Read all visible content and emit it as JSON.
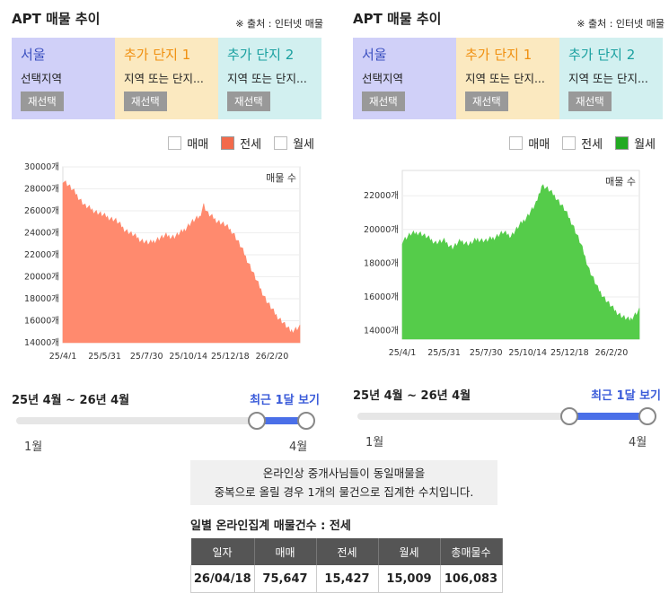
{
  "panels": [
    {
      "title": "APT 매물 추이",
      "source": "※ 출처 : 인터넷 매물",
      "regions": [
        {
          "name": "서울",
          "sub": "선택지역",
          "button": "재선택",
          "bg": "#d0d0f8",
          "color": "#3a4fc0"
        },
        {
          "name": "추가 단지 1",
          "sub": "지역 또는 단지...",
          "button": "재선택",
          "bg": "#fbe9c0",
          "color": "#f09010"
        },
        {
          "name": "추가 단지 2",
          "sub": "지역 또는 단지...",
          "button": "재선택",
          "bg": "#d2f0f0",
          "color": "#1aa0a0"
        }
      ],
      "legend": [
        {
          "label": "매매",
          "checked": false,
          "color": "#ffffff"
        },
        {
          "label": "전세",
          "checked": true,
          "color": "#f26a4b"
        },
        {
          "label": "월세",
          "checked": false,
          "color": "#ffffff"
        }
      ],
      "period": "25년 4월 ~ 26년 4월",
      "recent": "최근 1달 보기",
      "slider": {
        "min_label": "1월",
        "max_label": "4월",
        "low": 0.83,
        "high": 1.0
      }
    },
    {
      "title": "APT 매물 추이",
      "source": "※ 출처 : 인터넷 매물",
      "regions": [
        {
          "name": "서울",
          "sub": "선택지역",
          "button": "재선택",
          "bg": "#d0d0f8",
          "color": "#3a4fc0"
        },
        {
          "name": "추가 단지 1",
          "sub": "지역 또는 단지...",
          "button": "재선택",
          "bg": "#fbe9c0",
          "color": "#f09010"
        },
        {
          "name": "추가 단지 2",
          "sub": "지역 또는 단지...",
          "button": "재선택",
          "bg": "#d2f0f0",
          "color": "#1aa0a0"
        }
      ],
      "legend": [
        {
          "label": "매매",
          "checked": false,
          "color": "#ffffff"
        },
        {
          "label": "전세",
          "checked": false,
          "color": "#ffffff"
        },
        {
          "label": "월세",
          "checked": true,
          "color": "#22aa22"
        }
      ],
      "period": "25년 4월 ~ 26년 4월",
      "recent": "최근 1달 보기",
      "slider": {
        "min_label": "1월",
        "max_label": "4월",
        "low": 0.73,
        "high": 1.0
      }
    }
  ],
  "notice_line1": "온라인상 중개사님들이 동일매물을",
  "notice_line2": "중복으로 올릴 경우 1개의 물건으로 집계한 수치입니다.",
  "table": {
    "title": "일별 온라인집계 매물건수 : 전세",
    "headers": [
      "일자",
      "매매",
      "전세",
      "월세",
      "총매물수"
    ],
    "row": [
      "26/04/18",
      "75,647",
      "15,427",
      "15,009",
      "106,083"
    ]
  },
  "chart_data": [
    {
      "type": "area",
      "series_label": "매물 수",
      "color": "#ff8a6e",
      "yticks": [
        "14000개",
        "16000개",
        "18000개",
        "20000개",
        "22000개",
        "24000개",
        "26000개",
        "28000개",
        "30000개"
      ],
      "ylim": [
        14000,
        30000
      ],
      "xticks": [
        "25/4/1",
        "25/5/31",
        "25/7/30",
        "25/10/14",
        "25/12/18",
        "26/2/20"
      ],
      "x_tick_index": [
        0,
        30,
        60,
        90,
        120,
        150
      ],
      "points": [
        [
          0,
          28800
        ],
        [
          4,
          28300
        ],
        [
          10,
          27400
        ],
        [
          16,
          26400
        ],
        [
          22,
          26000
        ],
        [
          30,
          25500
        ],
        [
          38,
          25100
        ],
        [
          44,
          24300
        ],
        [
          50,
          23800
        ],
        [
          56,
          23300
        ],
        [
          62,
          23000
        ],
        [
          68,
          23400
        ],
        [
          74,
          23700
        ],
        [
          80,
          23600
        ],
        [
          86,
          24100
        ],
        [
          92,
          24900
        ],
        [
          98,
          25400
        ],
        [
          101,
          26500
        ],
        [
          104,
          25700
        ],
        [
          110,
          25100
        ],
        [
          116,
          24700
        ],
        [
          122,
          24000
        ],
        [
          128,
          22600
        ],
        [
          134,
          21000
        ],
        [
          140,
          19300
        ],
        [
          146,
          17800
        ],
        [
          152,
          16600
        ],
        [
          158,
          15800
        ],
        [
          163,
          15000
        ],
        [
          170,
          15400
        ]
      ]
    },
    {
      "type": "area",
      "series_label": "매물 수",
      "color": "#55cc4a",
      "yticks": [
        "14000개",
        "16000개",
        "18000개",
        "20000개",
        "22000개"
      ],
      "ylim": [
        13500,
        23500
      ],
      "xticks": [
        "25/4/1",
        "25/5/31",
        "25/7/30",
        "25/10/14",
        "25/12/18",
        "26/2/20"
      ],
      "x_tick_index": [
        0,
        30,
        60,
        90,
        120,
        150
      ],
      "points": [
        [
          0,
          19300
        ],
        [
          6,
          19700
        ],
        [
          12,
          19800
        ],
        [
          18,
          19500
        ],
        [
          24,
          19200
        ],
        [
          30,
          19300
        ],
        [
          36,
          18900
        ],
        [
          42,
          19300
        ],
        [
          48,
          19100
        ],
        [
          54,
          19400
        ],
        [
          60,
          19300
        ],
        [
          66,
          19500
        ],
        [
          72,
          19800
        ],
        [
          78,
          19600
        ],
        [
          84,
          20200
        ],
        [
          90,
          20800
        ],
        [
          96,
          21500
        ],
        [
          100,
          22600
        ],
        [
          104,
          22400
        ],
        [
          110,
          21900
        ],
        [
          116,
          21200
        ],
        [
          122,
          20300
        ],
        [
          128,
          19100
        ],
        [
          134,
          17600
        ],
        [
          140,
          16500
        ],
        [
          146,
          15800
        ],
        [
          152,
          15200
        ],
        [
          158,
          14800
        ],
        [
          163,
          14600
        ],
        [
          170,
          15200
        ]
      ]
    }
  ]
}
